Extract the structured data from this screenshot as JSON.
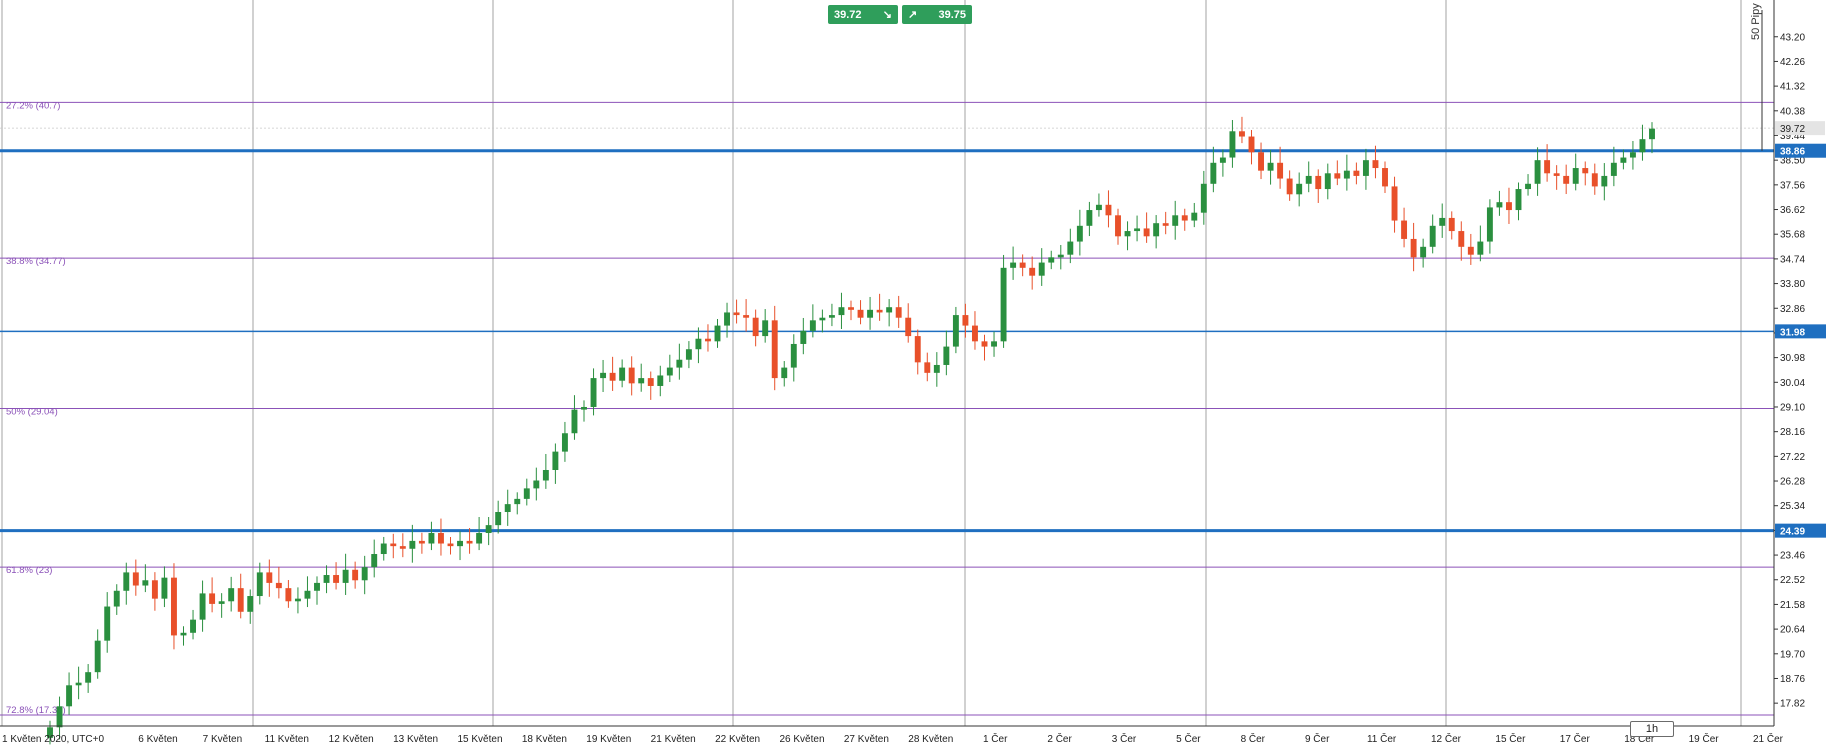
{
  "trade": {
    "sell_price": "39.72",
    "buy_price": "39.75",
    "sell_icon": "arrow-down-right-icon",
    "buy_icon": "arrow-up-right-icon"
  },
  "timeframe": "1h",
  "pips_label": "50 Pipy",
  "colors": {
    "up": "#2a8f3f",
    "down": "#e8502a",
    "fib": "#8b52b8",
    "level": "#1f6fc0",
    "grid": "#8c8c8c",
    "axis_label_bg": "#1f6fc0",
    "trade_box": "#2f9e5b"
  },
  "chart_data": {
    "type": "candlestick",
    "title": "",
    "xlabel": "",
    "ylabel": "",
    "ylim": [
      16.95,
      44.6
    ],
    "y_ticks": [
      "43.20",
      "42.26",
      "41.32",
      "40.38",
      "39.44",
      "38.50",
      "37.56",
      "36.62",
      "35.68",
      "34.74",
      "33.80",
      "32.86",
      "31.92",
      "30.98",
      "30.04",
      "29.10",
      "28.16",
      "27.22",
      "26.28",
      "25.34",
      "24.40",
      "23.46",
      "22.52",
      "21.58",
      "20.64",
      "19.70",
      "18.76",
      "17.82"
    ],
    "x_ticks": [
      "1 Květen 2020, UTC+0",
      "6 Květen",
      "7 Květen",
      "11 Květen",
      "12 Květen",
      "13 Květen",
      "15 Květen",
      "18 Květen",
      "19 Květen",
      "21 Květen",
      "22 Květen",
      "26 Květen",
      "27 Květen",
      "28 Květen",
      "1 Čer",
      "2 Čer",
      "3 Čer",
      "5 Čer",
      "8 Čer",
      "9 Čer",
      "11 Čer",
      "12 Čer",
      "15 Čer",
      "17 Čer",
      "18 Čer",
      "19 Čer",
      "21 Čer"
    ],
    "fib_levels": [
      {
        "label": "27.2% (40.7)",
        "value": 40.7
      },
      {
        "label": "38.8% (34.77)",
        "value": 34.77
      },
      {
        "label": "50% (29.04)",
        "value": 29.04
      },
      {
        "label": "61.8% (23)",
        "value": 23.0
      },
      {
        "label": "72.8% (17.37)",
        "value": 17.37
      }
    ],
    "levels": [
      {
        "value": 38.86,
        "label": "38.86",
        "weight": "bold"
      },
      {
        "value": 31.98,
        "label": "31.98",
        "weight": "thin"
      },
      {
        "value": 24.39,
        "label": "24.39",
        "weight": "bold"
      }
    ],
    "current_price": {
      "value": 39.72,
      "label": "39.72"
    },
    "closes": [
      16.9,
      17.7,
      18.5,
      18.6,
      19.0,
      20.2,
      21.5,
      22.1,
      22.8,
      22.3,
      22.5,
      21.8,
      22.6,
      20.4,
      20.5,
      21.0,
      22.0,
      21.6,
      21.7,
      22.2,
      21.3,
      21.9,
      22.8,
      22.4,
      22.2,
      21.7,
      21.8,
      22.1,
      22.4,
      22.7,
      22.4,
      22.9,
      22.5,
      23.0,
      23.5,
      23.9,
      23.8,
      23.7,
      24.0,
      23.9,
      24.3,
      23.9,
      23.8,
      24.0,
      23.9,
      24.3,
      24.6,
      25.1,
      25.4,
      25.6,
      26.0,
      26.3,
      26.7,
      27.4,
      28.1,
      29.0,
      29.1,
      30.2,
      30.4,
      30.1,
      30.6,
      30.0,
      30.2,
      29.9,
      30.3,
      30.6,
      30.9,
      31.3,
      31.7,
      31.6,
      32.2,
      32.7,
      32.6,
      32.5,
      31.8,
      32.4,
      30.2,
      30.6,
      31.5,
      32.0,
      32.4,
      32.5,
      32.6,
      32.9,
      32.8,
      32.5,
      32.8,
      32.7,
      32.9,
      32.5,
      31.8,
      30.8,
      30.4,
      30.7,
      31.4,
      32.6,
      32.2,
      31.6,
      31.4,
      31.6,
      34.4,
      34.6,
      34.4,
      34.1,
      34.6,
      34.8,
      34.9,
      35.4,
      36.0,
      36.6,
      36.8,
      36.4,
      35.6,
      35.8,
      35.9,
      35.6,
      36.1,
      36.0,
      36.4,
      36.2,
      36.5,
      37.6,
      38.4,
      38.6,
      39.6,
      39.4,
      38.8,
      38.1,
      38.4,
      37.8,
      37.2,
      37.6,
      37.9,
      37.4,
      38.0,
      37.8,
      38.1,
      37.9,
      38.5,
      38.2,
      37.5,
      36.2,
      35.5,
      34.8,
      35.2,
      36.0,
      36.3,
      35.8,
      35.2,
      34.9,
      35.4,
      36.7,
      36.9,
      36.6,
      37.4,
      37.6,
      38.5,
      38.0,
      37.9,
      37.6,
      38.2,
      38.0,
      37.5,
      37.9,
      38.4,
      38.6,
      38.8,
      39.3,
      39.7
    ]
  }
}
